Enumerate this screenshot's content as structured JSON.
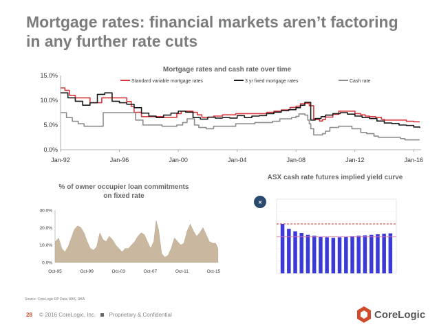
{
  "slide": {
    "title_line1": "Mortgage rates: financial markets aren’t factoring",
    "title_line2": "in any further rate cuts",
    "source": "Source: CoreLogic RP Data, ABS, RBA",
    "page_number": "28",
    "footer_copyright": "© 2016 CoreLogic, Inc.",
    "footer_confidential": "Proprietary & Confidential",
    "logo_text": "CoreLogic",
    "colors": {
      "title": "#7b7c7e",
      "brand": "#d04a2b"
    }
  },
  "chart_data": [
    {
      "type": "line",
      "title": "Mortgage rates and cash rate over time",
      "ylim": [
        0,
        15
      ],
      "yticks": [
        "0.0%",
        "5.0%",
        "10.0%",
        "15.0%"
      ],
      "xticks": [
        "Jan-92",
        "Jan-96",
        "Jan-00",
        "Jan-04",
        "Jan-08",
        "Jan-12",
        "Jan-16"
      ],
      "xlim": [
        1992,
        2016.5
      ],
      "legend_position": "top",
      "grid": false,
      "series": [
        {
          "name": "Standard variable mortgage rates",
          "color": "#d9363e",
          "x": [
            1992.0,
            1992.3,
            1992.6,
            1993.0,
            1993.5,
            1994.0,
            1994.4,
            1994.8,
            1995.0,
            1995.5,
            1996.0,
            1996.5,
            1996.8,
            1997.0,
            1997.5,
            1997.8,
            1998.0,
            1998.5,
            1999.0,
            1999.9,
            2000.2,
            2000.7,
            2001.0,
            2001.3,
            2001.6,
            2002.0,
            2002.4,
            2003.0,
            2003.9,
            2004.0,
            2005.0,
            2006.0,
            2006.5,
            2007.0,
            2007.6,
            2008.0,
            2008.3,
            2008.6,
            2008.9,
            2009.2,
            2009.6,
            2009.8,
            2010.0,
            2010.5,
            2010.9,
            2011.0,
            2011.8,
            2012.0,
            2012.4,
            2012.7,
            2013.0,
            2013.4,
            2013.8,
            2014.0,
            2015.3,
            2015.5,
            2016.0,
            2016.4
          ],
          "y": [
            12.5,
            12.0,
            11.0,
            10.5,
            10.5,
            9.5,
            9.5,
            10.5,
            10.5,
            10.5,
            10.5,
            9.75,
            8.75,
            7.55,
            6.7,
            6.7,
            6.7,
            6.7,
            6.55,
            7.3,
            7.8,
            7.8,
            7.55,
            7.05,
            6.55,
            6.55,
            6.8,
            7.05,
            7.3,
            7.3,
            7.3,
            7.55,
            7.8,
            8.05,
            8.55,
            8.8,
            9.3,
            9.4,
            8.9,
            6.1,
            5.8,
            6.1,
            6.6,
            7.15,
            7.8,
            7.8,
            7.8,
            7.3,
            7.05,
            6.8,
            6.7,
            6.55,
            6.15,
            6.0,
            6.0,
            5.75,
            5.65,
            5.65
          ]
        },
        {
          "name": "3 yr fixed mortgage rates",
          "color": "#1a1a1a",
          "x": [
            1992.0,
            1992.5,
            1993.0,
            1993.5,
            1994.0,
            1994.5,
            1995.0,
            1995.5,
            1996.0,
            1996.5,
            1997.0,
            1997.5,
            1998.0,
            1998.5,
            1999.0,
            1999.5,
            2000.0,
            2000.5,
            2001.0,
            2001.5,
            2002.0,
            2002.5,
            2003.0,
            2003.5,
            2004.0,
            2004.5,
            2005.0,
            2005.5,
            2006.0,
            2006.5,
            2007.0,
            2007.5,
            2008.0,
            2008.3,
            2008.6,
            2009.0,
            2009.3,
            2009.7,
            2010.0,
            2010.5,
            2011.0,
            2011.5,
            2012.0,
            2012.5,
            2013.0,
            2013.5,
            2014.0,
            2014.5,
            2015.0,
            2015.5,
            2016.0,
            2016.4
          ],
          "y": [
            11.5,
            10.5,
            9.8,
            9.0,
            9.5,
            11.2,
            11.5,
            9.8,
            9.5,
            9.2,
            8.5,
            7.4,
            6.8,
            6.5,
            7.0,
            7.4,
            7.8,
            7.6,
            6.5,
            6.2,
            6.6,
            6.4,
            6.5,
            6.4,
            6.9,
            6.5,
            6.8,
            6.9,
            7.3,
            7.6,
            7.9,
            8.1,
            8.5,
            9.0,
            9.6,
            6.0,
            6.3,
            6.7,
            7.0,
            7.3,
            7.5,
            7.2,
            6.8,
            6.5,
            6.3,
            5.8,
            5.4,
            5.3,
            5.0,
            4.9,
            4.6,
            4.4
          ]
        },
        {
          "name": "Cash rate",
          "color": "#8c8c8c",
          "x": [
            1992.0,
            1992.4,
            1992.8,
            1993.2,
            1993.6,
            1994.6,
            1994.9,
            1996.6,
            1997.1,
            1997.6,
            1998.9,
            1999.9,
            2000.3,
            2000.6,
            2001.1,
            2001.4,
            2001.9,
            2002.4,
            2003.9,
            2005.2,
            2006.4,
            2006.9,
            2007.7,
            2008.0,
            2008.2,
            2008.6,
            2008.8,
            2008.9,
            2009.0,
            2009.2,
            2009.8,
            2010.0,
            2010.3,
            2010.9,
            2011.8,
            2011.9,
            2012.4,
            2012.8,
            2013.3,
            2013.6,
            2015.1,
            2015.4,
            2016.4
          ],
          "y": [
            7.5,
            6.5,
            5.75,
            5.25,
            4.75,
            4.75,
            7.5,
            7.5,
            6.0,
            5.0,
            4.75,
            5.0,
            5.5,
            6.25,
            5.0,
            4.5,
            4.25,
            4.75,
            5.25,
            5.5,
            5.75,
            6.25,
            6.5,
            6.75,
            7.25,
            7.0,
            6.0,
            5.25,
            4.25,
            3.0,
            3.25,
            3.75,
            4.5,
            4.75,
            4.25,
            4.25,
            3.5,
            3.25,
            2.75,
            2.5,
            2.25,
            2.0,
            2.0
          ]
        }
      ]
    },
    {
      "type": "area",
      "title_line1": "% of owner occupier loan commitments",
      "title_line2": "on fixed rate",
      "ylim": [
        0,
        30
      ],
      "yticks": [
        "0.0%",
        "10.0%",
        "20.0%",
        "30.0%"
      ],
      "xticks": [
        "Oct-95",
        "Oct-99",
        "Oct-03",
        "Oct-07",
        "Oct-11",
        "Oct-15"
      ],
      "xlim": [
        1995.75,
        2016.4
      ],
      "color": "#c9b7a0",
      "x": [
        1995.8,
        1996.2,
        1996.6,
        1997.0,
        1997.4,
        1997.8,
        1998.2,
        1998.6,
        1999.0,
        1999.4,
        1999.8,
        2000.2,
        2000.6,
        2001.0,
        2001.4,
        2001.8,
        2002.2,
        2002.6,
        2003.0,
        2003.4,
        2003.8,
        2004.2,
        2004.6,
        2005.0,
        2005.4,
        2005.8,
        2006.2,
        2006.6,
        2007.0,
        2007.4,
        2007.8,
        2008.2,
        2008.5,
        2008.8,
        2009.2,
        2009.6,
        2010.0,
        2010.4,
        2010.8,
        2011.2,
        2011.6,
        2012.0,
        2012.4,
        2012.8,
        2013.2,
        2013.6,
        2014.0,
        2014.4,
        2014.8,
        2015.2,
        2015.6,
        2016.0,
        2016.3
      ],
      "y": [
        12,
        14,
        8,
        6,
        9,
        14,
        19,
        21,
        20,
        17,
        12,
        8,
        7,
        9,
        17,
        13,
        12,
        15,
        13,
        10,
        8,
        6,
        8,
        8,
        10,
        12,
        15,
        17,
        16,
        12,
        8,
        12,
        24,
        19,
        5,
        3,
        4,
        8,
        14,
        12,
        10,
        11,
        18,
        22,
        18,
        15,
        17,
        20,
        16,
        12,
        11,
        11,
        8
      ]
    },
    {
      "type": "bar",
      "title": "ASX cash rate futures implied yield curve",
      "color": "#3a3ad6",
      "reference_line_color": "#c0392b",
      "ylim": [
        1.0,
        2.5
      ],
      "values": [
        2.0,
        1.9,
        1.85,
        1.82,
        1.78,
        1.76,
        1.74,
        1.73,
        1.72,
        1.73,
        1.74,
        1.75,
        1.76,
        1.77,
        1.78,
        1.79,
        1.8,
        1.81
      ],
      "reference_value": 2.0
    }
  ]
}
